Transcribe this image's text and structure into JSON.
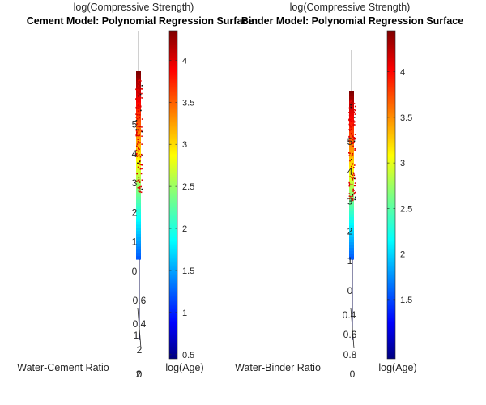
{
  "chart_data": [
    {
      "type": "surface",
      "title": "Cement Model: Polynomial Regression Surface",
      "subtitle": "log(Compressive Strength)",
      "xlabel": "Water-Cement Ratio",
      "ylabel": "log(Age)",
      "zlabel": "log(Compressive Strength)",
      "z_ticks": [
        "5",
        "4",
        "3",
        "2",
        "1",
        "0"
      ],
      "z_range": [
        0,
        5.6
      ],
      "x_ticks": [
        "0.6",
        "0.4",
        "1",
        "2",
        "0",
        "2"
      ],
      "colorbar": {
        "colormap": "jet",
        "ticks": [
          0.5,
          1,
          1.5,
          2,
          2.5,
          3,
          3.5,
          4
        ],
        "range": [
          0.45,
          4.35
        ]
      }
    },
    {
      "type": "surface",
      "title": "Binder Model: Polynomial Regression Surface",
      "subtitle": "log(Compressive Strength)",
      "xlabel": "Water-Binder Ratio",
      "ylabel": "log(Age)",
      "zlabel": "log(Compressive Strength)",
      "z_ticks": [
        "5",
        "4",
        "3",
        "2",
        "1",
        "0"
      ],
      "z_range": [
        0,
        5.6
      ],
      "x_ticks": [
        "0.4",
        "0.6",
        "0.8",
        "0"
      ],
      "colorbar": {
        "colormap": "jet",
        "ticks": [
          1.5,
          2,
          2.5,
          3,
          3.5,
          4
        ],
        "range": [
          0.85,
          4.45
        ]
      }
    }
  ]
}
